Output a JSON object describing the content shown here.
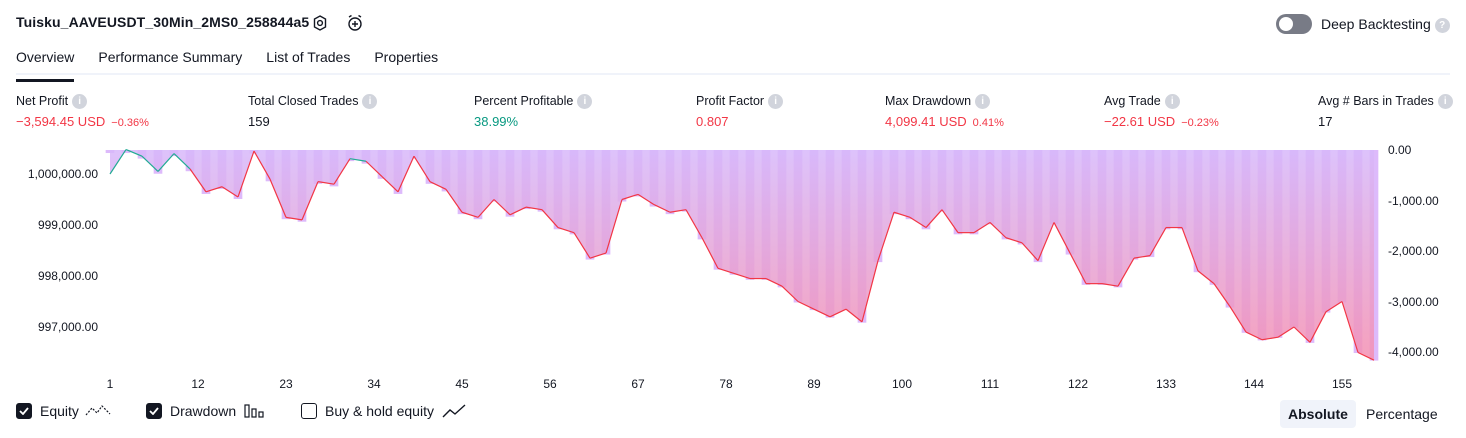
{
  "header": {
    "title": "Tuisku_AAVEUSDT_30Min_2MS0_258844a5",
    "deep_backtesting_label": "Deep Backtesting"
  },
  "tabs": [
    {
      "label": "Overview",
      "active": true
    },
    {
      "label": "Performance Summary",
      "active": false
    },
    {
      "label": "List of Trades",
      "active": false
    },
    {
      "label": "Properties",
      "active": false
    }
  ],
  "metrics": {
    "net_profit": {
      "label": "Net Profit",
      "value": "−3,594.45 USD",
      "pct": "−0.36%"
    },
    "total_closed_trades": {
      "label": "Total Closed Trades",
      "value": "159"
    },
    "percent_profitable": {
      "label": "Percent Profitable",
      "value": "38.99%"
    },
    "profit_factor": {
      "label": "Profit Factor",
      "value": "0.807"
    },
    "max_drawdown": {
      "label": "Max Drawdown",
      "value": "4,099.41 USD",
      "pct": "0.41%"
    },
    "avg_trade": {
      "label": "Avg Trade",
      "value": "−22.61 USD",
      "pct": "−0.23%"
    },
    "avg_bars": {
      "label": "Avg # Bars in Trades",
      "value": "17"
    }
  },
  "chart_data": {
    "type": "line",
    "left_axis": {
      "ticks": [
        "1,000,000.00",
        "999,000.00",
        "998,000.00",
        "997,000.00"
      ],
      "values": [
        1000000,
        999000,
        998000,
        997000
      ]
    },
    "right_axis": {
      "ticks": [
        "0.00",
        "-1,000.00",
        "-2,000.00",
        "-3,000.00",
        "-4,000.00"
      ],
      "values": [
        0,
        -1000,
        -2000,
        -3000,
        -4000
      ]
    },
    "x_ticks": [
      "1",
      "12",
      "23",
      "34",
      "45",
      "56",
      "67",
      "78",
      "89",
      "100",
      "111",
      "122",
      "133",
      "144",
      "155"
    ],
    "equity_colors": {
      "loss": "#f23645",
      "gain": "#22ab94",
      "drawdown_bar": "#ce93f8"
    },
    "x": [
      1,
      3,
      5,
      7,
      9,
      11,
      13,
      15,
      17,
      19,
      21,
      23,
      25,
      27,
      29,
      31,
      33,
      35,
      37,
      39,
      41,
      43,
      45,
      47,
      49,
      51,
      53,
      55,
      57,
      59,
      61,
      63,
      65,
      67,
      69,
      71,
      73,
      75,
      77,
      79,
      81,
      83,
      85,
      87,
      89,
      91,
      93,
      95,
      97,
      99,
      101,
      103,
      105,
      107,
      109,
      111,
      113,
      115,
      117,
      119,
      121,
      123,
      125,
      127,
      129,
      131,
      133,
      135,
      137,
      139,
      141,
      143,
      145,
      147,
      149,
      151,
      153,
      155,
      157,
      159
    ],
    "equity": [
      1000000,
      1000480,
      1000350,
      1000050,
      1000400,
      1000100,
      999650,
      999750,
      999550,
      1000450,
      999900,
      999150,
      999100,
      999850,
      999800,
      1000300,
      1000250,
      999950,
      999650,
      1000350,
      999850,
      999700,
      999250,
      999150,
      999500,
      999200,
      999350,
      999300,
      998950,
      998850,
      998350,
      998450,
      999500,
      999600,
      999400,
      999250,
      999300,
      998750,
      998150,
      998050,
      997950,
      997950,
      997800,
      997500,
      997350,
      997200,
      997350,
      997100,
      998300,
      999250,
      999150,
      998950,
      999300,
      998850,
      998850,
      999050,
      998750,
      998650,
      998300,
      999050,
      998450,
      997850,
      997850,
      997800,
      998350,
      998400,
      998950,
      998950,
      998100,
      997850,
      997400,
      996900,
      996750,
      996800,
      997000,
      996700,
      997300,
      997500,
      996500,
      996350
    ],
    "equity_label": "Equity",
    "drawdown_label": "Drawdown",
    "buyhold_label": "Buy & hold equity"
  },
  "legend": {
    "equity": {
      "label": "Equity",
      "checked": true
    },
    "drawdown": {
      "label": "Drawdown",
      "checked": true
    },
    "buyhold": {
      "label": "Buy & hold equity",
      "checked": false
    }
  },
  "modes": {
    "absolute": "Absolute",
    "percentage": "Percentage",
    "selected": "absolute"
  }
}
